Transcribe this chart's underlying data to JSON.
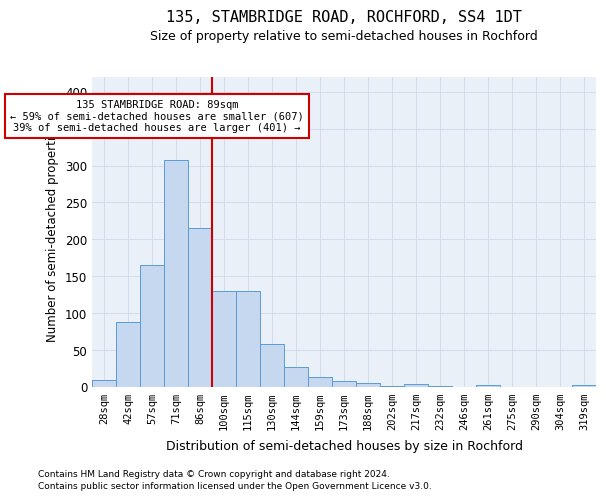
{
  "title": "135, STAMBRIDGE ROAD, ROCHFORD, SS4 1DT",
  "subtitle": "Size of property relative to semi-detached houses in Rochford",
  "xlabel": "Distribution of semi-detached houses by size in Rochford",
  "ylabel": "Number of semi-detached properties",
  "footnote1": "Contains HM Land Registry data © Crown copyright and database right 2024.",
  "footnote2": "Contains public sector information licensed under the Open Government Licence v3.0.",
  "categories": [
    "28sqm",
    "42sqm",
    "57sqm",
    "71sqm",
    "86sqm",
    "100sqm",
    "115sqm",
    "130sqm",
    "144sqm",
    "159sqm",
    "173sqm",
    "188sqm",
    "202sqm",
    "217sqm",
    "232sqm",
    "246sqm",
    "261sqm",
    "275sqm",
    "290sqm",
    "304sqm",
    "319sqm"
  ],
  "values": [
    10,
    88,
    165,
    308,
    215,
    130,
    130,
    58,
    27,
    14,
    8,
    5,
    2,
    4,
    2,
    0,
    3,
    0,
    0,
    0,
    3
  ],
  "bar_color": "#c5d8f0",
  "bar_edge_color": "#5b9bd5",
  "marker_bin_index": 4,
  "marker_label": "135 STAMBRIDGE ROAD: 89sqm",
  "annotation_line1": "← 59% of semi-detached houses are smaller (607)",
  "annotation_line2": "39% of semi-detached houses are larger (401) →",
  "annotation_box_color": "#ffffff",
  "annotation_box_edge": "#cc0000",
  "vline_color": "#cc0000",
  "grid_color": "#d0d8e8",
  "background_color": "#eaf0f8",
  "ylim": [
    0,
    420
  ],
  "yticks": [
    0,
    50,
    100,
    150,
    200,
    250,
    300,
    350,
    400
  ]
}
